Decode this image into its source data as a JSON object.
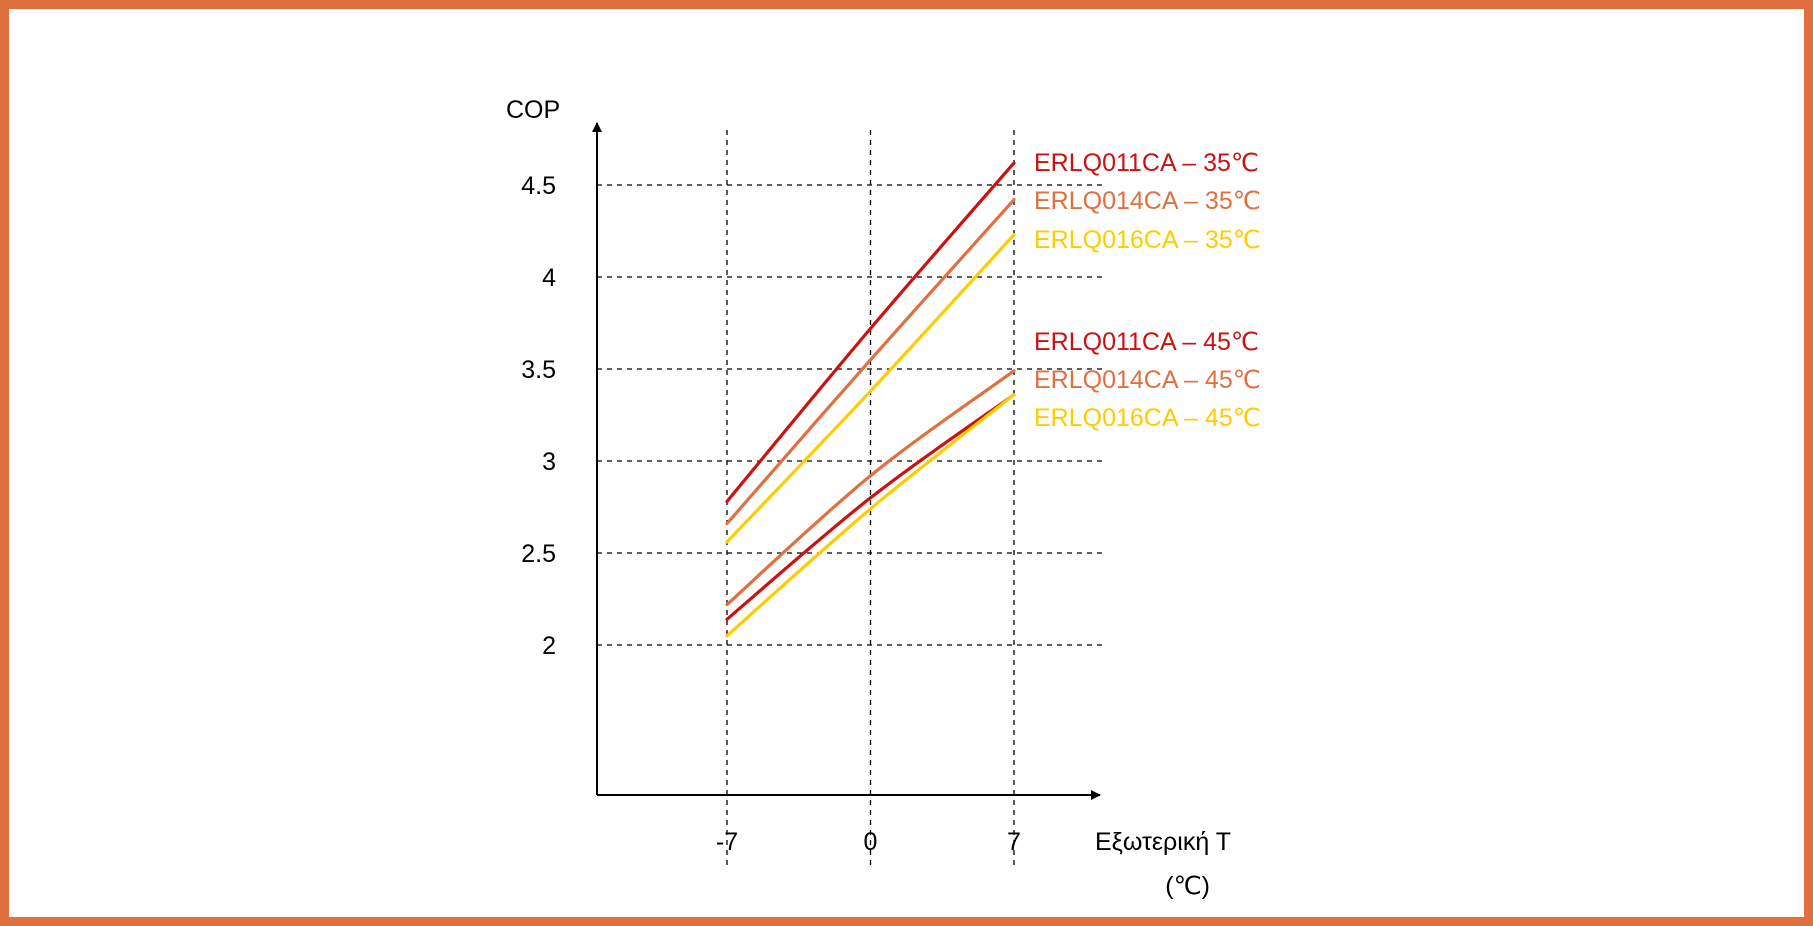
{
  "chart_data": {
    "type": "line",
    "ylabel": "COP",
    "xlabel": "Εξωτερική Τ",
    "xlabel_unit": "(℃)",
    "x": [
      -7,
      0,
      7
    ],
    "x_tick_labels": [
      "-7",
      "0",
      "7"
    ],
    "y_tick_labels": [
      "4.5",
      "4",
      "3.5",
      "3",
      "2.5",
      "2"
    ],
    "y_ticks": [
      4.5,
      4,
      3.5,
      3,
      2.5,
      2
    ],
    "ylim": [
      1.2,
      4.9
    ],
    "xlim": [
      -10.8,
      12.0
    ],
    "grid": true,
    "legend_position": "right",
    "series": [
      {
        "name": "ERLQ011CA – 35℃",
        "color": "#CC1111",
        "values": [
          2.78,
          3.72,
          4.62
        ]
      },
      {
        "name": "ERLQ014CA – 35℃",
        "color": "#E07040",
        "values": [
          2.66,
          3.55,
          4.42
        ]
      },
      {
        "name": "ERLQ016CA – 35℃",
        "color": "#FFCC00",
        "values": [
          2.56,
          3.38,
          4.23
        ]
      },
      {
        "name": "ERLQ011CA – 45℃",
        "color": "#CC1111",
        "values": [
          2.14,
          2.8,
          3.36
        ]
      },
      {
        "name": "ERLQ014CA – 45℃",
        "color": "#E07040",
        "values": [
          2.22,
          2.92,
          3.49
        ]
      },
      {
        "name": "ERLQ016CA – 45℃",
        "color": "#FFCC00",
        "values": [
          2.05,
          2.74,
          3.36
        ]
      }
    ]
  }
}
